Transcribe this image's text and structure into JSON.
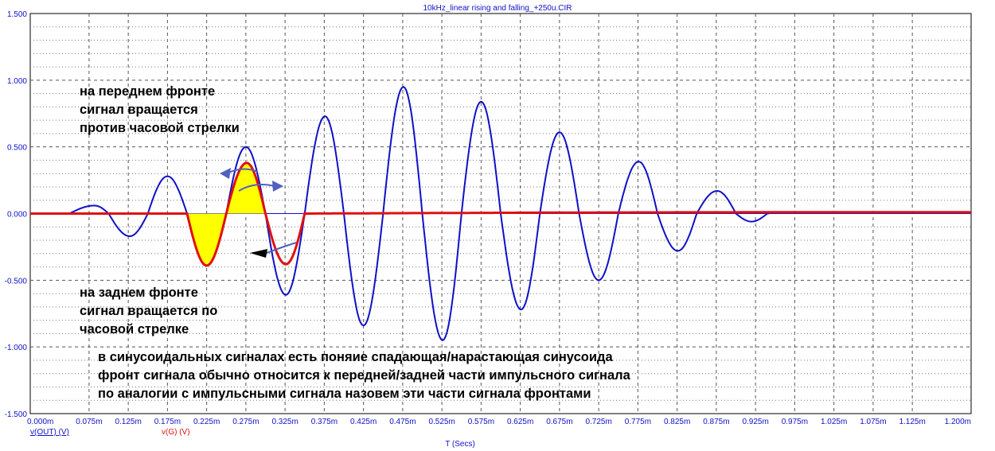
{
  "chart_data": {
    "type": "line",
    "title": "10kHz_linear rising and falling_+250u.CIR",
    "xlabel": "T (Secs)",
    "x_tick_labels": [
      "0.000m",
      "0.075m",
      "0.125m",
      "0.175m",
      "0.225m",
      "0.275m",
      "0.325m",
      "0.375m",
      "0.425m",
      "0.475m",
      "0.525m",
      "0.575m",
      "0.625m",
      "0.675m",
      "0.725m",
      "0.775m",
      "0.825m",
      "0.875m",
      "0.925m",
      "0.975m",
      "1.025m",
      "1.075m",
      "1.125m",
      "1.200m"
    ],
    "y_tick_labels": [
      "1.500",
      "1.000",
      "0.500",
      "0.000",
      "-0.500",
      "-1.000",
      "-1.500"
    ],
    "xlim": [
      0,
      1.2
    ],
    "ylim": [
      -1.5,
      1.5
    ],
    "x_unit": "ms",
    "grid": true,
    "colors": {
      "out": "#1010c8",
      "g": "#e01010",
      "fill": "#ffff00",
      "arrow": "#5060c0",
      "text": "#1010c8"
    },
    "series": [
      {
        "name": "v(OUT) (V)",
        "color": "#1010c8",
        "x": [
          0.05,
          0.082,
          0.1,
          0.127,
          0.15,
          0.175,
          0.2,
          0.225,
          0.25,
          0.275,
          0.3,
          0.326,
          0.35,
          0.376,
          0.4,
          0.425,
          0.45,
          0.476,
          0.5,
          0.526,
          0.55,
          0.575,
          0.6,
          0.626,
          0.65,
          0.675,
          0.7,
          0.725,
          0.75,
          0.776,
          0.8,
          0.826,
          0.85,
          0.876,
          0.9,
          0.92,
          0.94,
          0.96,
          1.2
        ],
        "y": [
          0,
          0.06,
          0,
          -0.17,
          0,
          0.28,
          0,
          -0.39,
          0,
          0.5,
          0,
          -0.61,
          0,
          0.73,
          0,
          -0.84,
          0,
          0.95,
          0,
          -0.95,
          0,
          0.84,
          0,
          -0.72,
          0,
          0.61,
          0,
          -0.5,
          0,
          0.39,
          0,
          -0.28,
          0,
          0.17,
          0,
          -0.06,
          0,
          0.01,
          0.01
        ]
      },
      {
        "name": "v(G) (V)",
        "color": "#e01010",
        "x": [
          0,
          0.2,
          0.225,
          0.25,
          0.276,
          0.3,
          0.326,
          0.35,
          0.975,
          1.2
        ],
        "y": [
          0,
          0,
          -0.39,
          0,
          0.38,
          0,
          -0.38,
          0,
          0.01,
          0.01
        ]
      }
    ]
  },
  "annotations": {
    "rising_front": "на переднем фронте\nсигнал вращается\nпротив часовой стрелки",
    "falling_front": "на заднем фронте\nсигнал вращается по\nчасовой стрелке",
    "note": "в синусоидальных сигналах есть поняие спадающая/нарастающая синусоида\nфронт сигнала обычно относится к передней/задней части импульсного сигнала\nпо аналогии с импульсными сигнала назовем эти части сигнала фронтами"
  }
}
